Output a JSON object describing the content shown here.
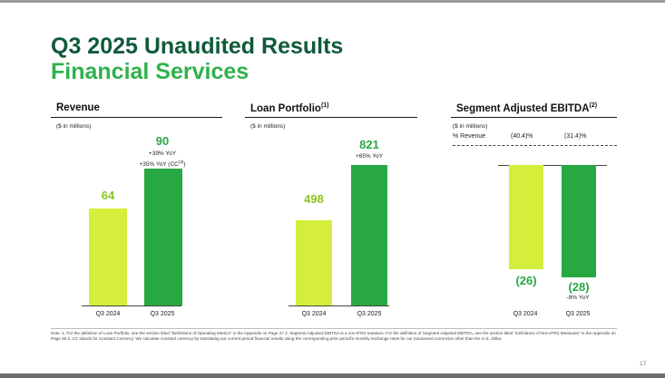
{
  "title": "Q3 2025 Unaudited Results",
  "subtitle": "Financial Services",
  "panels": {
    "revenue": {
      "title": "Revenue",
      "units": "($ in millions)",
      "bars": [
        {
          "label": "64"
        },
        {
          "label": "90",
          "notes": [
            "+39% YoY",
            "+35% YoY (CC",
            ")"
          ],
          "note_sup": "(3)"
        }
      ]
    },
    "loan": {
      "title": "Loan Portfolio",
      "title_sup": "(1)",
      "units": "($ in millions)",
      "bars": [
        {
          "label": "498"
        },
        {
          "label": "821",
          "notes": [
            "+65% YoY"
          ]
        }
      ]
    },
    "ebitda": {
      "title": "Segment Adjusted EBITDA",
      "title_sup": "(2)",
      "units": "($ in millions)",
      "pct_label": "% Revenue",
      "pct_values": [
        "(40.4)%",
        "(31.4)%"
      ],
      "bars": [
        {
          "label": "(26)"
        },
        {
          "label": "(28)",
          "notes": [
            "-8% YoY"
          ]
        }
      ]
    }
  },
  "chart_data": [
    {
      "type": "bar",
      "title": "Revenue",
      "units": "$ in millions",
      "categories": [
        "Q3 2024",
        "Q3 2025"
      ],
      "values": [
        64,
        90
      ],
      "annotations": [
        "+39% YoY",
        "+35% YoY (CC(3))"
      ]
    },
    {
      "type": "bar",
      "title": "Loan Portfolio(1)",
      "units": "$ in millions",
      "categories": [
        "Q3 2024",
        "Q3 2025"
      ],
      "values": [
        498,
        821
      ],
      "annotations": [
        "+65% YoY"
      ]
    },
    {
      "type": "bar",
      "title": "Segment Adjusted EBITDA(2)",
      "units": "$ in millions",
      "categories": [
        "Q3 2024",
        "Q3 2025"
      ],
      "values": [
        -26,
        -28
      ],
      "percent_revenue": [
        -40.4,
        -31.4
      ],
      "annotations": [
        "-8% YoY"
      ]
    }
  ],
  "colors": {
    "prior_year": "#d4ee3b",
    "current_year": "#27a843",
    "title_dark": "#0f5a3a",
    "title_green": "#2fb24c"
  },
  "footnote": "Note: 1. For the definition of Loan Portfolio, see the section titled \"Definitions of Operating Metrics\" in the Appendix on Page 27 2. Segment Adjusted EBITDA is a non-IFRS measure. For the definition of Segment Adjusted EBITDA, see the section titled \"Definitions of Non-IFRS Measures\" in the Appendix on Page 28 3. CC stands for Constant Currency. We calculate constant currency by translating our current period financial results using the corresponding prior period's monthly exchange rates for our transacted currencies other than the U.S. dollar.",
  "page_number": "17"
}
